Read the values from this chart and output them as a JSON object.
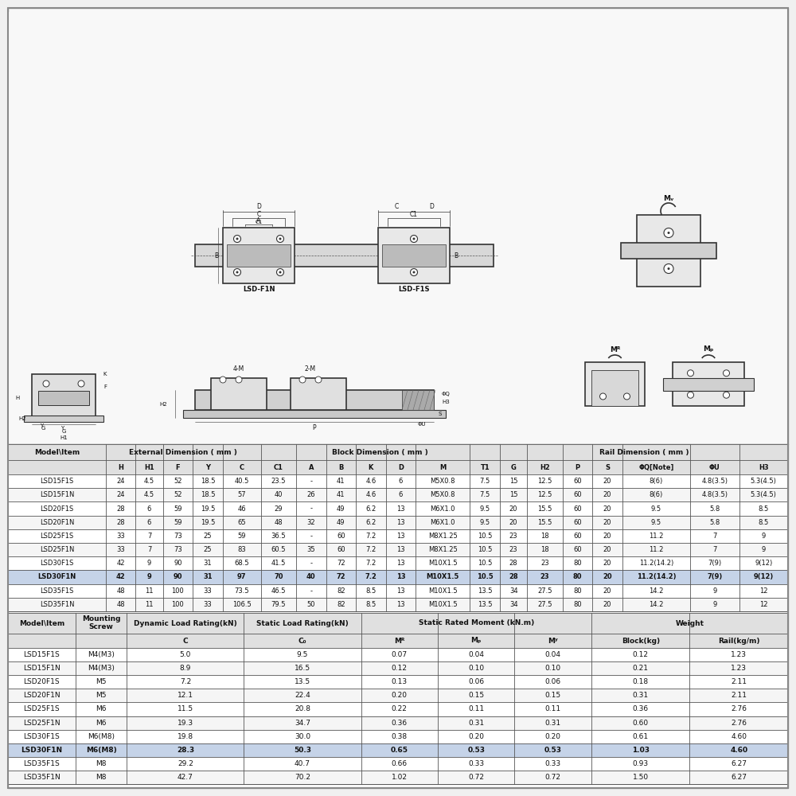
{
  "bg_color": "#f0f0f0",
  "table_bg": "#ffffff",
  "highlight_color": "#c5d3e8",
  "border_color": "#333333",
  "header_bg": "#e0e0e0",
  "text_color": "#111111",
  "table1_data": [
    [
      "LSD15F1S",
      "24",
      "4.5",
      "52",
      "18.5",
      "40.5",
      "23.5",
      "-",
      "41",
      "4.6",
      "6",
      "M5X0.8",
      "7.5",
      "15",
      "12.5",
      "60",
      "20",
      "8(6)",
      "4.8(3.5)",
      "5.3(4.5)"
    ],
    [
      "LSD15F1N",
      "24",
      "4.5",
      "52",
      "18.5",
      "57",
      "40",
      "26",
      "41",
      "4.6",
      "6",
      "M5X0.8",
      "7.5",
      "15",
      "12.5",
      "60",
      "20",
      "8(6)",
      "4.8(3.5)",
      "5.3(4.5)"
    ],
    [
      "LSD20F1S",
      "28",
      "6",
      "59",
      "19.5",
      "46",
      "29",
      "-",
      "49",
      "6.2",
      "13",
      "M6X1.0",
      "9.5",
      "20",
      "15.5",
      "60",
      "20",
      "9.5",
      "5.8",
      "8.5"
    ],
    [
      "LSD20F1N",
      "28",
      "6",
      "59",
      "19.5",
      "65",
      "48",
      "32",
      "49",
      "6.2",
      "13",
      "M6X1.0",
      "9.5",
      "20",
      "15.5",
      "60",
      "20",
      "9.5",
      "5.8",
      "8.5"
    ],
    [
      "LSD25F1S",
      "33",
      "7",
      "73",
      "25",
      "59",
      "36.5",
      "-",
      "60",
      "7.2",
      "13",
      "M8X1.25",
      "10.5",
      "23",
      "18",
      "60",
      "20",
      "11.2",
      "7",
      "9"
    ],
    [
      "LSD25F1N",
      "33",
      "7",
      "73",
      "25",
      "83",
      "60.5",
      "35",
      "60",
      "7.2",
      "13",
      "M8X1.25",
      "10.5",
      "23",
      "18",
      "60",
      "20",
      "11.2",
      "7",
      "9"
    ],
    [
      "LSD30F1S",
      "42",
      "9",
      "90",
      "31",
      "68.5",
      "41.5",
      "-",
      "72",
      "7.2",
      "13",
      "M10X1.5",
      "10.5",
      "28",
      "23",
      "80",
      "20",
      "11.2(14.2)",
      "7(9)",
      "9(12)"
    ],
    [
      "LSD30F1N",
      "42",
      "9",
      "90",
      "31",
      "97",
      "70",
      "40",
      "72",
      "7.2",
      "13",
      "M10X1.5",
      "10.5",
      "28",
      "23",
      "80",
      "20",
      "11.2(14.2)",
      "7(9)",
      "9(12)"
    ],
    [
      "LSD35F1S",
      "48",
      "11",
      "100",
      "33",
      "73.5",
      "46.5",
      "-",
      "82",
      "8.5",
      "13",
      "M10X1.5",
      "13.5",
      "34",
      "27.5",
      "80",
      "20",
      "14.2",
      "9",
      "12"
    ],
    [
      "LSD35F1N",
      "48",
      "11",
      "100",
      "33",
      "106.5",
      "79.5",
      "50",
      "82",
      "8.5",
      "13",
      "M10X1.5",
      "13.5",
      "34",
      "27.5",
      "80",
      "20",
      "14.2",
      "9",
      "12"
    ]
  ],
  "table1_highlight_row": 7,
  "table2_data": [
    [
      "LSD15F1S",
      "M4(M3)",
      "5.0",
      "9.5",
      "0.07",
      "0.04",
      "0.04",
      "0.12",
      "1.23"
    ],
    [
      "LSD15F1N",
      "M4(M3)",
      "8.9",
      "16.5",
      "0.12",
      "0.10",
      "0.10",
      "0.21",
      "1.23"
    ],
    [
      "LSD20F1S",
      "M5",
      "7.2",
      "13.5",
      "0.13",
      "0.06",
      "0.06",
      "0.18",
      "2.11"
    ],
    [
      "LSD20F1N",
      "M5",
      "12.1",
      "22.4",
      "0.20",
      "0.15",
      "0.15",
      "0.31",
      "2.11"
    ],
    [
      "LSD25F1S",
      "M6",
      "11.5",
      "20.8",
      "0.22",
      "0.11",
      "0.11",
      "0.36",
      "2.76"
    ],
    [
      "LSD25F1N",
      "M6",
      "19.3",
      "34.7",
      "0.36",
      "0.31",
      "0.31",
      "0.60",
      "2.76"
    ],
    [
      "LSD30F1S",
      "M6(M8)",
      "19.8",
      "30.0",
      "0.38",
      "0.20",
      "0.20",
      "0.61",
      "4.60"
    ],
    [
      "LSD30F1N",
      "M6(M8)",
      "28.3",
      "50.3",
      "0.65",
      "0.53",
      "0.53",
      "1.03",
      "4.60"
    ],
    [
      "LSD35F1S",
      "M8",
      "29.2",
      "40.7",
      "0.66",
      "0.33",
      "0.33",
      "0.93",
      "6.27"
    ],
    [
      "LSD35F1N",
      "M8",
      "42.7",
      "70.2",
      "1.02",
      "0.72",
      "0.72",
      "1.50",
      "6.27"
    ]
  ],
  "table2_highlight_row": 7
}
